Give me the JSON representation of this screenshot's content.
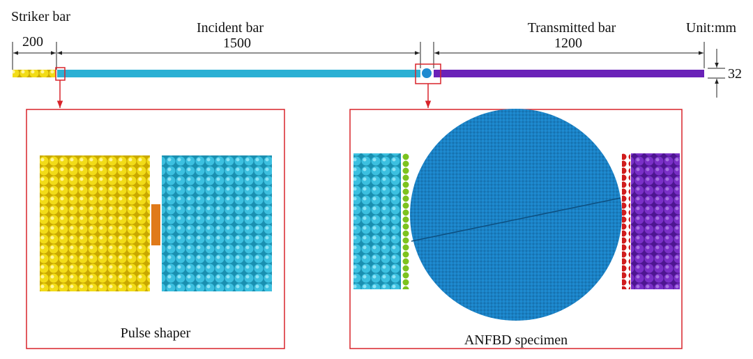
{
  "header": {
    "striker_label": "Striker bar",
    "striker_length": "200",
    "incident_label": "Incident bar",
    "incident_length": "1500",
    "transmitted_label": "Transmitted bar",
    "transmitted_length": "1200",
    "unit": "Unit:mm",
    "diameter": "32"
  },
  "panels": [
    {
      "caption": "Pulse shaper"
    },
    {
      "caption": "ANFBD specimen"
    }
  ]
}
